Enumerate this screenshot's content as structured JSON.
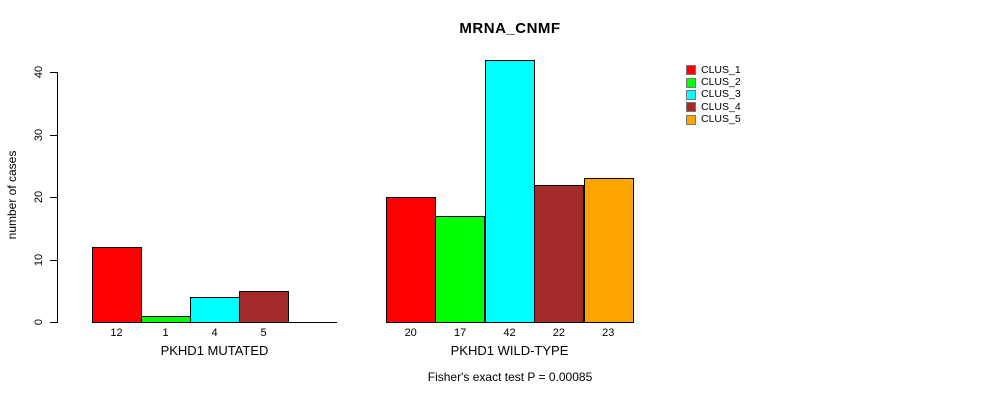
{
  "chart_data": {
    "type": "bar",
    "title": "MRNA_CNMF",
    "ylabel": "number of cases",
    "yticks": [
      0,
      10,
      20,
      30,
      40
    ],
    "ylim": [
      0,
      40
    ],
    "grid": false,
    "legend": {
      "position": "top-right",
      "entries": [
        {
          "label": "CLUS_1",
          "color": "#FF0000"
        },
        {
          "label": "CLUS_2",
          "color": "#00FF00"
        },
        {
          "label": "CLUS_3",
          "color": "#00FFFF"
        },
        {
          "label": "CLUS_4",
          "color": "#A52A2A"
        },
        {
          "label": "CLUS_5",
          "color": "#FFA500"
        }
      ]
    },
    "groups": [
      {
        "label": "PKHD1 MUTATED",
        "categories": [
          "CLUS_1",
          "CLUS_2",
          "CLUS_3",
          "CLUS_4"
        ],
        "values": [
          12,
          1,
          4,
          5
        ],
        "colors": [
          "#FF0000",
          "#00FF00",
          "#00FFFF",
          "#A52A2A"
        ],
        "slots": 5
      },
      {
        "label": "PKHD1 WILD-TYPE",
        "categories": [
          "CLUS_1",
          "CLUS_2",
          "CLUS_3",
          "CLUS_4",
          "CLUS_5"
        ],
        "values": [
          20,
          17,
          42,
          22,
          23
        ],
        "colors": [
          "#FF0000",
          "#00FF00",
          "#00FFFF",
          "#A52A2A",
          "#FFA500"
        ],
        "slots": 5
      }
    ],
    "footnote": "Fisher's exact test P = 0.00085"
  }
}
